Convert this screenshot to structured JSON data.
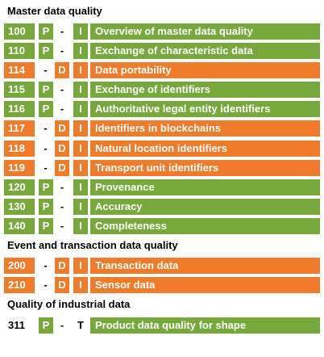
{
  "colors": {
    "green": "#76a83b",
    "orange": "#ef7b2b"
  },
  "sections": [
    {
      "heading": "Master data quality"
    },
    {
      "heading": "Event and transaction data quality"
    },
    {
      "heading": "Quality of industrial data"
    }
  ],
  "rows": [
    {
      "num": "100",
      "p": "P",
      "mid": "-",
      "i": "I",
      "title": "Overview of master data quality",
      "color": "green"
    },
    {
      "num": "110",
      "p": "P",
      "mid": "-",
      "i": "I",
      "title": "Exchange of characteristic data",
      "color": "green"
    },
    {
      "num": "114",
      "p": "-",
      "mid": "D",
      "i": "I",
      "title": "Data portability",
      "color": "orange"
    },
    {
      "num": "115",
      "p": "P",
      "mid": "-",
      "i": "I",
      "title": "Exchange of identifiers",
      "color": "green"
    },
    {
      "num": "116",
      "p": "P",
      "mid": "-",
      "i": "I",
      "title": "Authoritative legal entity identifiers",
      "color": "green"
    },
    {
      "num": "117",
      "p": "-",
      "mid": "D",
      "i": "I",
      "title": "Identifiers in blockchains",
      "color": "orange"
    },
    {
      "num": "118",
      "p": "-",
      "mid": "D",
      "i": "I",
      "title": "Natural location identifiers",
      "color": "orange"
    },
    {
      "num": "119",
      "p": "-",
      "mid": "D",
      "i": "I",
      "title": "Transport unit identifiers",
      "color": "orange"
    },
    {
      "num": "120",
      "p": "P",
      "mid": "-",
      "i": "I",
      "title": "Provenance",
      "color": "green"
    },
    {
      "num": "130",
      "p": "P",
      "mid": "-",
      "i": "I",
      "title": "Accuracy",
      "color": "green"
    },
    {
      "num": "140",
      "p": "P",
      "mid": "-",
      "i": "I",
      "title": "Completeness",
      "color": "green"
    },
    {
      "num": "200",
      "p": "-",
      "mid": "D",
      "i": "I",
      "title": "Transaction data",
      "color": "orange"
    },
    {
      "num": "210",
      "p": "-",
      "mid": "D",
      "i": "I",
      "title": "Sensor data",
      "color": "orange"
    },
    {
      "num": "311",
      "p": "P",
      "mid": "-",
      "i": "T",
      "title": "Product data quality for shape",
      "color": "green"
    }
  ]
}
